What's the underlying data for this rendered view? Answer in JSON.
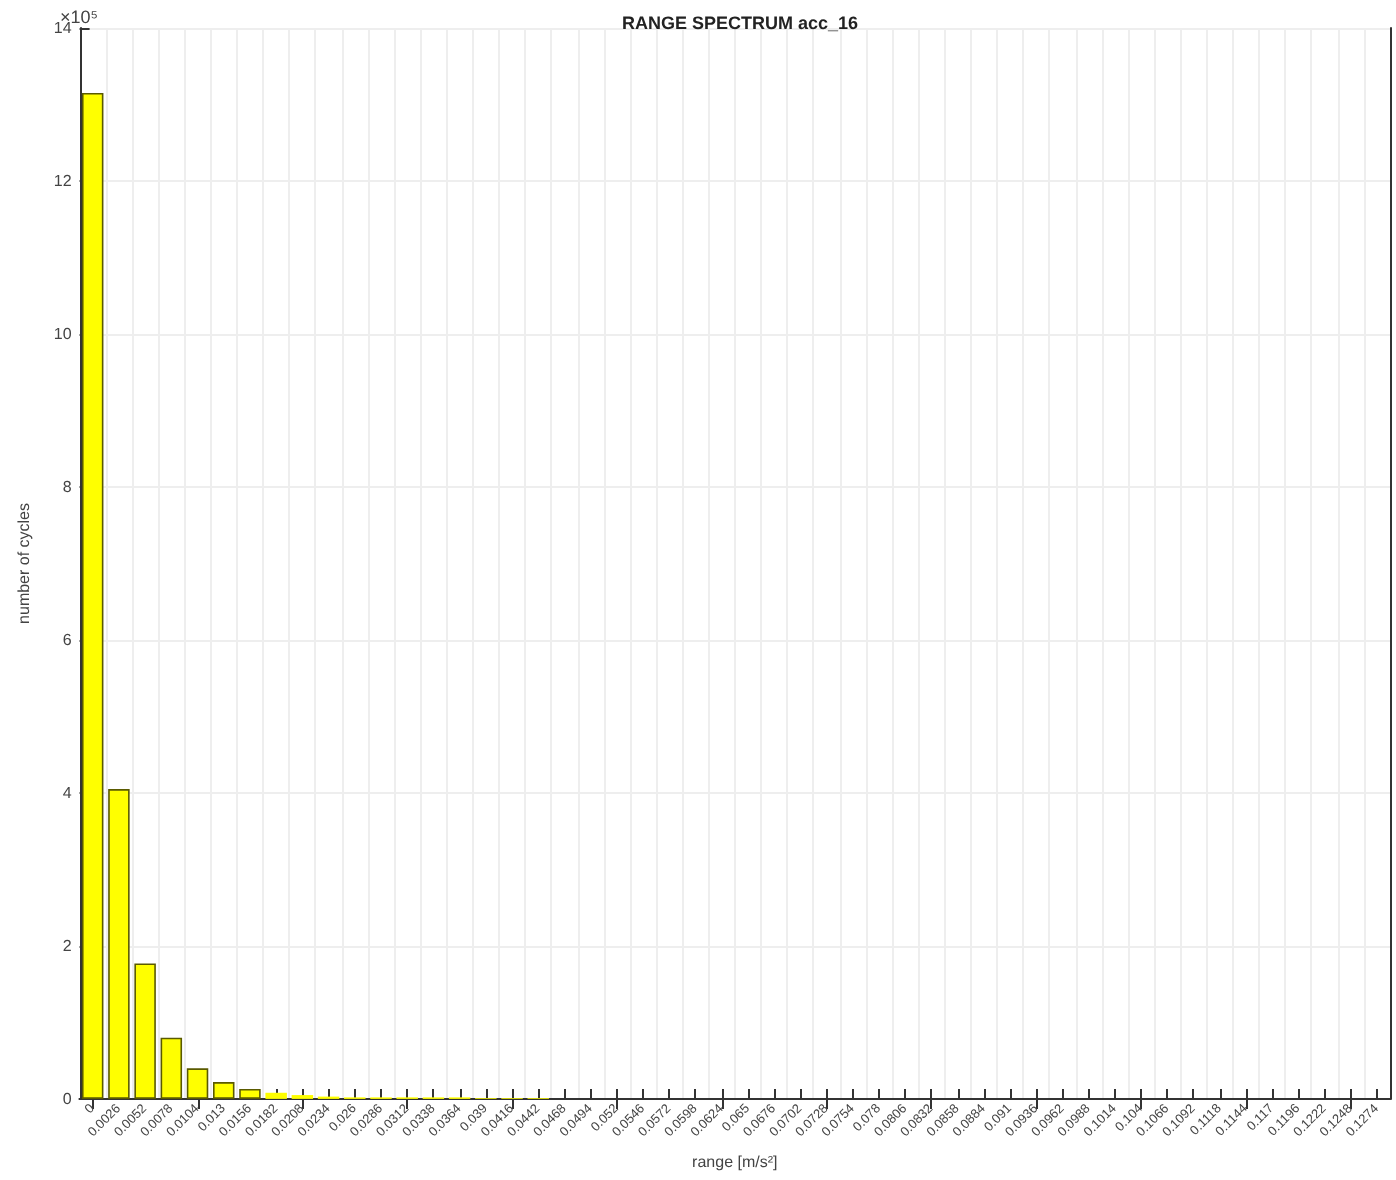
{
  "chart_data": {
    "type": "bar",
    "title": "RANGE SPECTRUM acc_16",
    "xlabel": "range [m/s²]",
    "ylabel": "number of cycles",
    "annotations": [
      "×10⁵"
    ],
    "categories": [
      "0",
      "0.0026",
      "0.0052",
      "0.0078",
      "0.0104",
      "0.013",
      "0.0156",
      "0.0182",
      "0.0208",
      "0.0234",
      "0.026",
      "0.0286",
      "0.0312",
      "0.0338",
      "0.0364",
      "0.039",
      "0.0416",
      "0.0442",
      "0.0468",
      "0.0494",
      "0.052",
      "0.0546",
      "0.0572",
      "0.0598",
      "0.0624",
      "0.065",
      "0.0676",
      "0.0702",
      "0.0728",
      "0.0754",
      "0.078",
      "0.0806",
      "0.0832",
      "0.0858",
      "0.0884",
      "0.091",
      "0.0936",
      "0.0962",
      "0.0988",
      "0.1014",
      "0.104",
      "0.1066",
      "0.1092",
      "0.1118",
      "0.1144",
      "0.117",
      "0.1196",
      "0.1222",
      "0.1248",
      "0.1274"
    ],
    "values": [
      13.15,
      4.05,
      1.77,
      0.8,
      0.4,
      0.22,
      0.13,
      0.08,
      0.05,
      0.03,
      0.02,
      0.02,
      0.02,
      0.02,
      0.02,
      0.01,
      0.01,
      0.01,
      0,
      0,
      0,
      0,
      0,
      0,
      0,
      0,
      0,
      0,
      0,
      0,
      0,
      0,
      0,
      0,
      0,
      0,
      0,
      0,
      0,
      0,
      0,
      0,
      0,
      0,
      0,
      0,
      0,
      0,
      0,
      0
    ],
    "color": "#ffff00",
    "ylim": [
      0,
      14
    ],
    "yticks": [
      0,
      2,
      4,
      6,
      8,
      10,
      12,
      14
    ],
    "grid": true
  }
}
